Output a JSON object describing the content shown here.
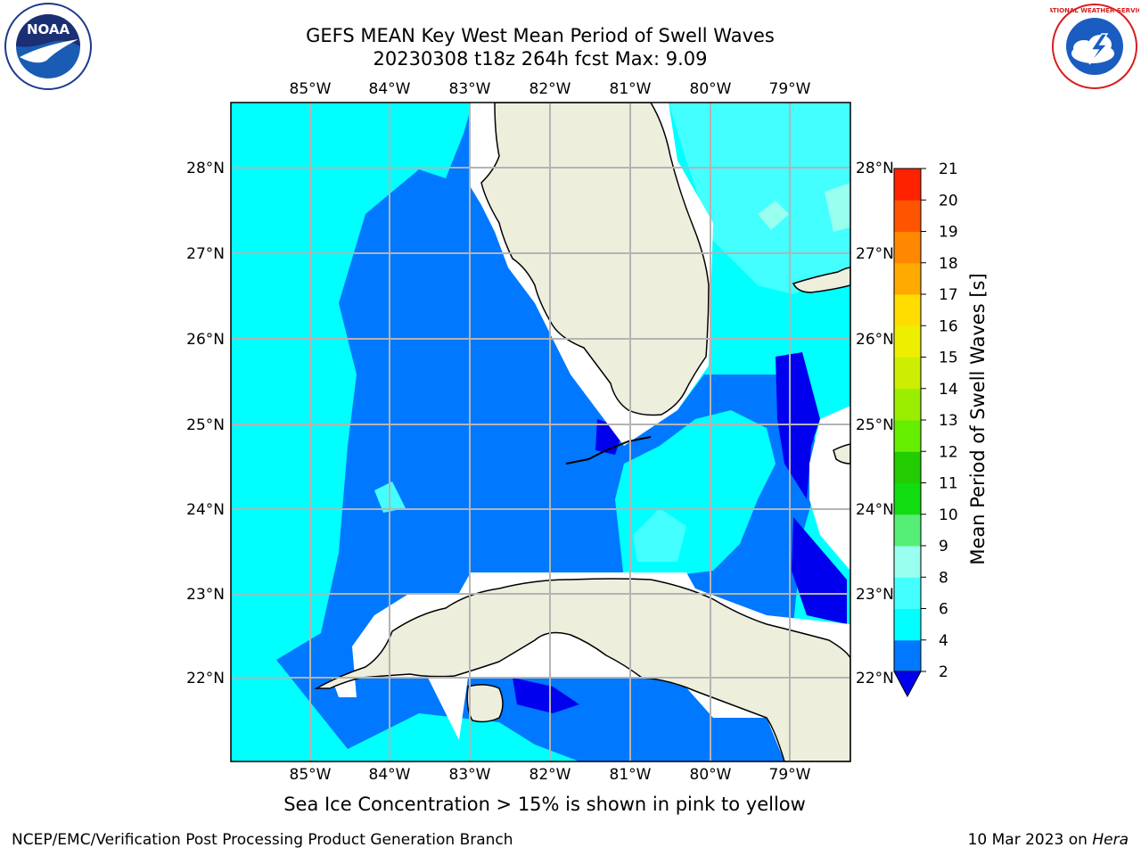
{
  "title": {
    "line1": "GEFS MEAN Key West Mean Period of Swell Waves",
    "line2": "20230308 t18z 264h fcst   Max: 9.09"
  },
  "map": {
    "lon_ticks": [
      "85°W",
      "84°W",
      "83°W",
      "82°W",
      "81°W",
      "80°W",
      "79°W"
    ],
    "lat_ticks_left": [
      "28°N",
      "27°N",
      "26°N",
      "25°N",
      "24°N",
      "23°N",
      "22°N"
    ],
    "lat_ticks_right": [
      "28°N",
      "27°N",
      "26°N",
      "25°N",
      "24°N",
      "23°N",
      "22°N"
    ],
    "colors": {
      "lt2": "#0000ee",
      "c2_4": "#0078ff",
      "c4_6": "#00ffff",
      "c6_8": "#44ffff",
      "c8_9": "#99ffee",
      "land": "#eeeedd",
      "ice_mask": "#ffffff",
      "grid": "#b4b4b4"
    }
  },
  "colorbar": {
    "label": "Mean Period of Swell Waves [s]",
    "tick_labels": [
      "2",
      "4",
      "6",
      "8",
      "9",
      "10",
      "11",
      "12",
      "13",
      "14",
      "15",
      "16",
      "17",
      "18",
      "19",
      "20",
      "21"
    ],
    "levels": [
      2,
      4,
      6,
      8,
      9,
      10,
      11,
      12,
      13,
      14,
      15,
      16,
      17,
      18,
      19,
      20,
      21
    ],
    "colors": [
      "#0078ff",
      "#00ffff",
      "#44ffff",
      "#99ffee",
      "#55ee77",
      "#11dd11",
      "#22cc00",
      "#66ee00",
      "#99ee00",
      "#ccee00",
      "#eeee00",
      "#ffdd00",
      "#ffaa00",
      "#ff8800",
      "#ff5500",
      "#ff2200"
    ],
    "under_color": "#0000ee"
  },
  "ice_note": "Sea Ice Concentration > 15% is shown in pink to yellow",
  "footer": {
    "left": "NCEP/EMC/Verification Post Processing Product Generation Branch",
    "date": "10 Mar 2023 on ",
    "machine": "Hera"
  },
  "logos": {
    "noaa_text": "NOAA",
    "nws_text": "NATIONAL WEATHER SERVICE",
    "noaa_icon": "noaa-bird-logo",
    "nws_icon": "nws-cloud-lightning-logo"
  }
}
